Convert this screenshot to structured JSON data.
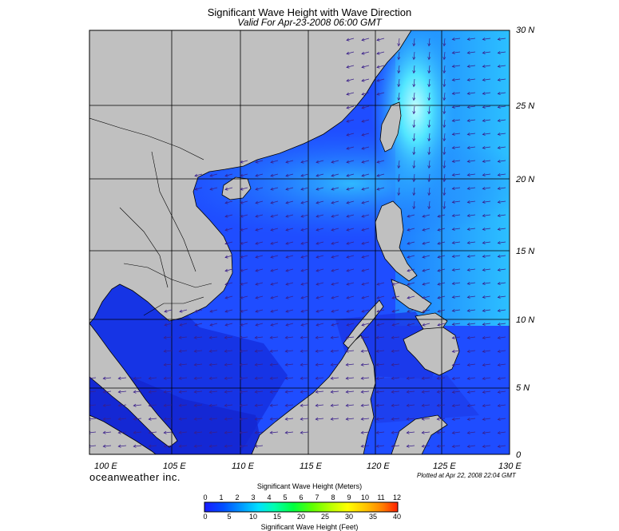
{
  "title": "Significant Wave Height with Wave Direction",
  "subtitle": "Valid For Apr-23-2008 06:00 GMT",
  "lat_labels": [
    "30 N",
    "25 N",
    "20 N",
    "15 N",
    "10 N",
    "5 N",
    "0"
  ],
  "lon_labels": [
    "100 E",
    "105 E",
    "110 E",
    "115 E",
    "120 E",
    "125 E",
    "130 E"
  ],
  "brand": "oceanweather inc.",
  "plotted": "Plotted at Apr 22, 2008 22:04 GMT",
  "colorbar": {
    "title_meters": "Significant Wave Height (Meters)",
    "title_feet": "Significant Wave Height (Feet)",
    "ticks_meters": [
      "0",
      "1",
      "2",
      "3",
      "4",
      "5",
      "6",
      "7",
      "8",
      "9",
      "10",
      "11",
      "12"
    ],
    "ticks_feet": [
      "0",
      "5",
      "10",
      "15",
      "20",
      "25",
      "30",
      "35",
      "40"
    ],
    "gradient_stops": [
      "#1a1aff",
      "#0050ff",
      "#00a0ff",
      "#00e0ff",
      "#00ffb0",
      "#00ff40",
      "#60ff00",
      "#c0ff00",
      "#ffff00",
      "#ffc000",
      "#ff8000",
      "#ff4000",
      "#ff0000"
    ]
  },
  "colors": {
    "land": "#c0c0c0",
    "sea_low": "#1a2ee6",
    "sea_mid": "#1f5cff",
    "sea_high": "#2ec8ff",
    "sea_peak": "#9ff8ff",
    "grid": "#000000",
    "arrows": "#3a1f8a"
  }
}
